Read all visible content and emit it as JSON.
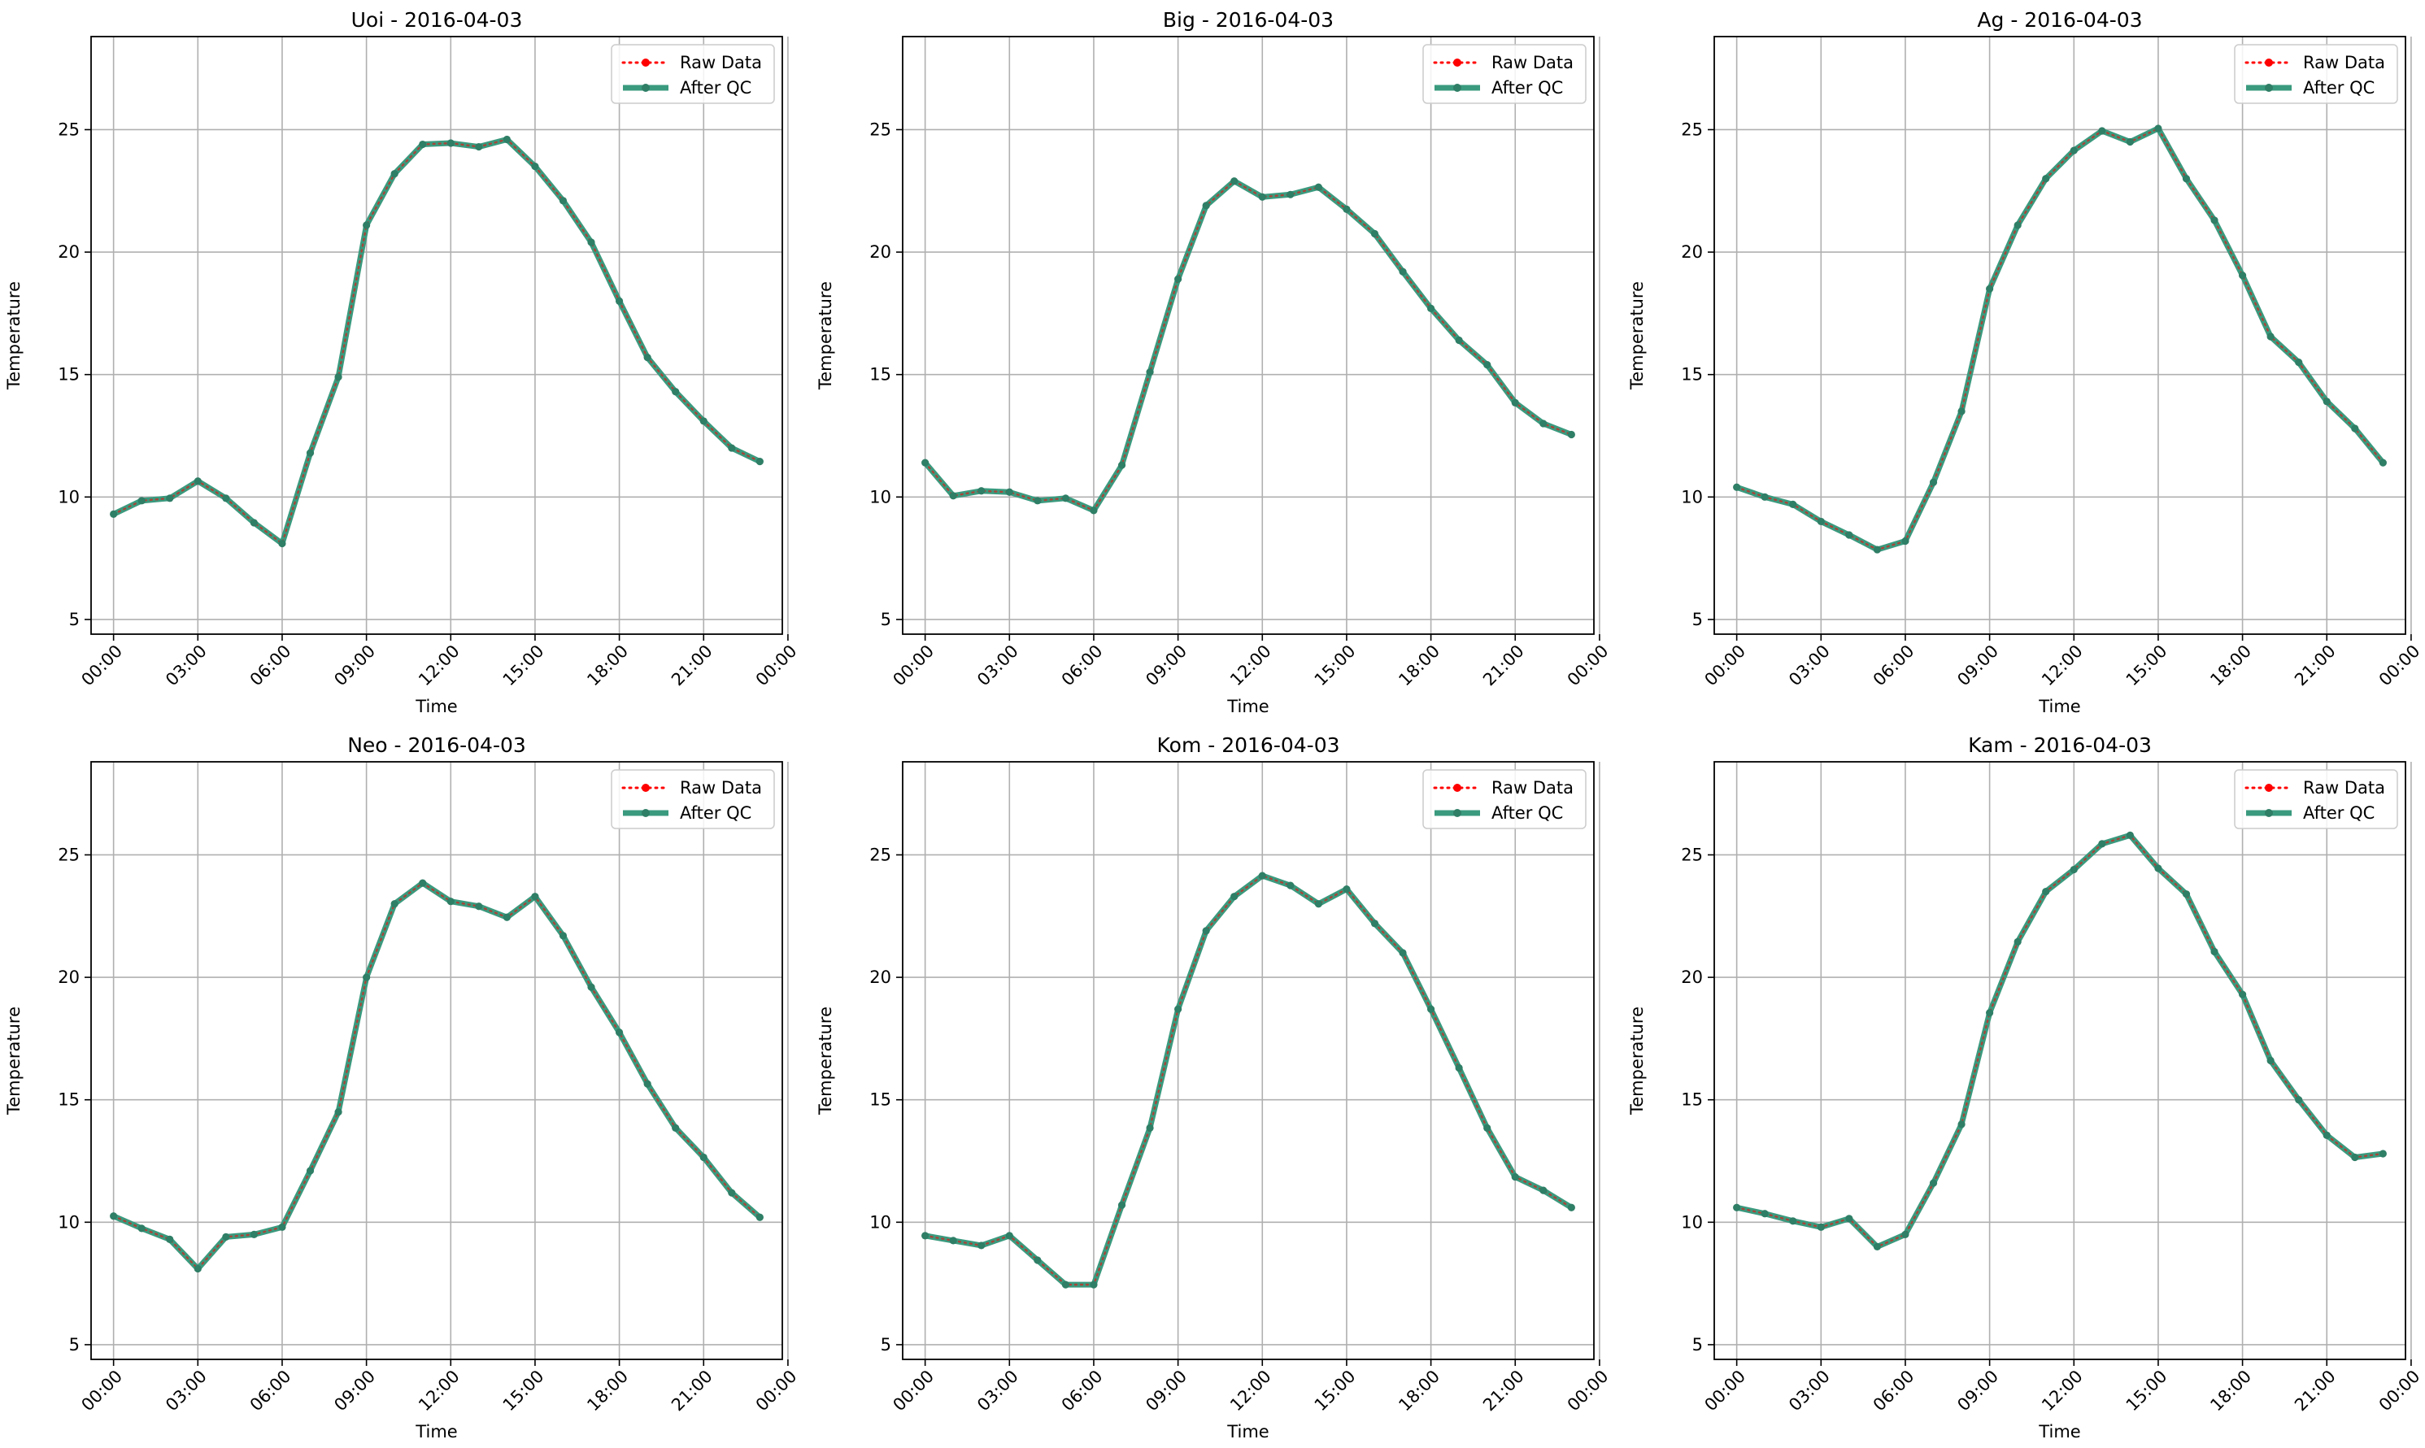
{
  "figure": {
    "legend_labels": {
      "raw": "Raw Data",
      "qc": "After QC"
    },
    "colors": {
      "raw": "#ff0000",
      "qc": "#3a9a7e",
      "qc_marker": "#2f7e66",
      "grid": "#b0b0b0",
      "axis": "#000000"
    }
  },
  "chart_data": [
    {
      "type": "line",
      "title": "Uoi - 2016-04-03",
      "xlabel": "Time",
      "ylabel": "Temperature",
      "ylim": [
        4.4,
        28.8
      ],
      "xlim": [
        -0.8,
        23.8
      ],
      "yticks": [
        5,
        10,
        15,
        20,
        25
      ],
      "xticks": [
        "00:00",
        "03:00",
        "06:00",
        "09:00",
        "12:00",
        "15:00",
        "18:00",
        "21:00",
        "00:00"
      ],
      "grid": true,
      "legend_position": "upper right",
      "series": [
        {
          "name": "Raw Data",
          "values": [
            9.3,
            9.85,
            9.95,
            10.65,
            9.95,
            8.95,
            8.1,
            11.8,
            14.9,
            21.1,
            23.2,
            24.4,
            24.45,
            24.3,
            24.6,
            23.5,
            22.1,
            20.4,
            18.0,
            15.7,
            14.3,
            13.1,
            12.0,
            11.45
          ]
        },
        {
          "name": "After QC",
          "values": [
            9.3,
            9.85,
            9.95,
            10.65,
            9.95,
            8.95,
            8.1,
            11.8,
            14.9,
            21.1,
            23.2,
            24.4,
            24.45,
            24.3,
            24.6,
            23.5,
            22.1,
            20.4,
            18.0,
            15.7,
            14.3,
            13.1,
            12.0,
            11.45
          ]
        }
      ]
    },
    {
      "type": "line",
      "title": "Big - 2016-04-03",
      "xlabel": "Time",
      "ylabel": "Temperature",
      "ylim": [
        4.4,
        28.8
      ],
      "xlim": [
        -0.8,
        23.8
      ],
      "yticks": [
        5,
        10,
        15,
        20,
        25
      ],
      "xticks": [
        "00:00",
        "03:00",
        "06:00",
        "09:00",
        "12:00",
        "15:00",
        "18:00",
        "21:00",
        "00:00"
      ],
      "grid": true,
      "legend_position": "upper right",
      "series": [
        {
          "name": "Raw Data",
          "values": [
            11.4,
            10.05,
            10.25,
            10.2,
            9.85,
            9.95,
            9.45,
            11.3,
            15.1,
            18.9,
            21.9,
            22.9,
            22.25,
            22.35,
            22.65,
            21.75,
            20.75,
            19.2,
            17.7,
            16.4,
            15.4,
            13.85,
            13.0,
            12.55
          ]
        },
        {
          "name": "After QC",
          "values": [
            11.4,
            10.05,
            10.25,
            10.2,
            9.85,
            9.95,
            9.45,
            11.3,
            15.1,
            18.9,
            21.9,
            22.9,
            22.25,
            22.35,
            22.65,
            21.75,
            20.75,
            19.2,
            17.7,
            16.4,
            15.4,
            13.85,
            13.0,
            12.55
          ]
        }
      ]
    },
    {
      "type": "line",
      "title": "Ag - 2016-04-03",
      "xlabel": "Time",
      "ylabel": "Temperature",
      "ylim": [
        4.4,
        28.8
      ],
      "xlim": [
        -0.8,
        23.8
      ],
      "yticks": [
        5,
        10,
        15,
        20,
        25
      ],
      "xticks": [
        "00:00",
        "03:00",
        "06:00",
        "09:00",
        "12:00",
        "15:00",
        "18:00",
        "21:00",
        "00:00"
      ],
      "grid": true,
      "legend_position": "upper right",
      "series": [
        {
          "name": "Raw Data",
          "values": [
            10.4,
            10.0,
            9.7,
            9.0,
            8.45,
            7.85,
            8.2,
            10.6,
            13.5,
            18.5,
            21.1,
            23.0,
            24.15,
            24.95,
            24.5,
            25.05,
            23.0,
            21.3,
            19.05,
            16.55,
            15.5,
            13.9,
            12.8,
            11.4
          ]
        },
        {
          "name": "After QC",
          "values": [
            10.4,
            10.0,
            9.7,
            9.0,
            8.45,
            7.85,
            8.2,
            10.6,
            13.5,
            18.5,
            21.1,
            23.0,
            24.15,
            24.95,
            24.5,
            25.05,
            23.0,
            21.3,
            19.05,
            16.55,
            15.5,
            13.9,
            12.8,
            11.4
          ]
        }
      ]
    },
    {
      "type": "line",
      "title": "Neo - 2016-04-03",
      "xlabel": "Time",
      "ylabel": "Temperature",
      "ylim": [
        4.4,
        28.8
      ],
      "xlim": [
        -0.8,
        23.8
      ],
      "yticks": [
        5,
        10,
        15,
        20,
        25
      ],
      "xticks": [
        "00:00",
        "03:00",
        "06:00",
        "09:00",
        "12:00",
        "15:00",
        "18:00",
        "21:00",
        "00:00"
      ],
      "grid": true,
      "legend_position": "upper right",
      "series": [
        {
          "name": "Raw Data",
          "values": [
            10.25,
            9.75,
            9.3,
            8.1,
            9.4,
            9.5,
            9.8,
            12.1,
            14.5,
            20.0,
            23.0,
            23.85,
            23.1,
            22.9,
            22.45,
            23.3,
            21.7,
            19.6,
            17.75,
            15.65,
            13.85,
            12.65,
            11.2,
            10.2
          ]
        },
        {
          "name": "After QC",
          "values": [
            10.25,
            9.75,
            9.3,
            8.1,
            9.4,
            9.5,
            9.8,
            12.1,
            14.5,
            20.0,
            23.0,
            23.85,
            23.1,
            22.9,
            22.45,
            23.3,
            21.7,
            19.6,
            17.75,
            15.65,
            13.85,
            12.65,
            11.2,
            10.2
          ]
        }
      ]
    },
    {
      "type": "line",
      "title": "Kom - 2016-04-03",
      "xlabel": "Time",
      "ylabel": "Temperature",
      "ylim": [
        4.4,
        28.8
      ],
      "xlim": [
        -0.8,
        23.8
      ],
      "yticks": [
        5,
        10,
        15,
        20,
        25
      ],
      "xticks": [
        "00:00",
        "03:00",
        "06:00",
        "09:00",
        "12:00",
        "15:00",
        "18:00",
        "21:00",
        "00:00"
      ],
      "grid": true,
      "legend_position": "upper right",
      "series": [
        {
          "name": "Raw Data",
          "values": [
            9.45,
            9.25,
            9.05,
            9.45,
            8.45,
            7.45,
            7.45,
            10.7,
            13.85,
            18.7,
            21.9,
            23.3,
            24.15,
            23.75,
            23.0,
            23.6,
            22.2,
            21.0,
            18.7,
            16.3,
            13.85,
            11.85,
            11.3,
            10.6
          ]
        },
        {
          "name": "After QC",
          "values": [
            9.45,
            9.25,
            9.05,
            9.45,
            8.45,
            7.45,
            7.45,
            10.7,
            13.85,
            18.7,
            21.9,
            23.3,
            24.15,
            23.75,
            23.0,
            23.6,
            22.2,
            21.0,
            18.7,
            16.3,
            13.85,
            11.85,
            11.3,
            10.6
          ]
        }
      ]
    },
    {
      "type": "line",
      "title": "Kam - 2016-04-03",
      "xlabel": "Time",
      "ylabel": "Temperature",
      "ylim": [
        4.4,
        28.8
      ],
      "xlim": [
        -0.8,
        23.8
      ],
      "yticks": [
        5,
        10,
        15,
        20,
        25
      ],
      "xticks": [
        "00:00",
        "03:00",
        "06:00",
        "09:00",
        "12:00",
        "15:00",
        "18:00",
        "21:00",
        "00:00"
      ],
      "grid": true,
      "legend_position": "upper right",
      "series": [
        {
          "name": "Raw Data",
          "values": [
            10.6,
            10.35,
            10.05,
            9.8,
            10.15,
            9.0,
            9.5,
            11.6,
            14.0,
            18.55,
            21.45,
            23.5,
            24.4,
            25.45,
            25.8,
            24.45,
            23.4,
            21.05,
            19.3,
            16.6,
            15.0,
            13.55,
            12.65,
            12.8
          ]
        },
        {
          "name": "After QC",
          "values": [
            10.6,
            10.35,
            10.05,
            9.8,
            10.15,
            9.0,
            9.5,
            11.6,
            14.0,
            18.55,
            21.45,
            23.5,
            24.4,
            25.45,
            25.8,
            24.45,
            23.4,
            21.05,
            19.3,
            16.6,
            15.0,
            13.55,
            12.65,
            12.8
          ]
        }
      ]
    }
  ]
}
